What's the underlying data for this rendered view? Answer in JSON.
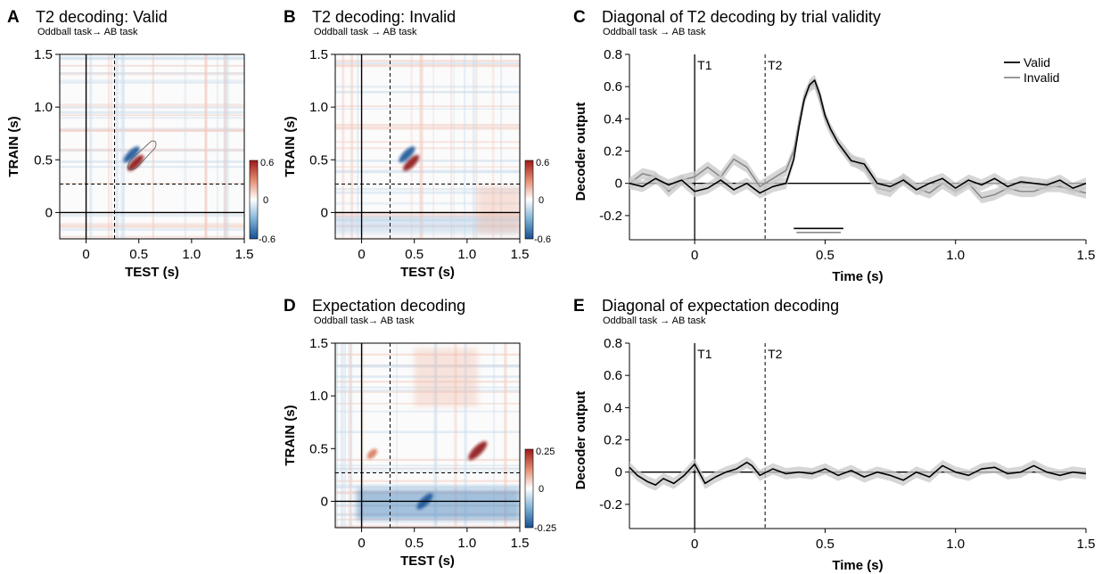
{
  "panels": {
    "A": {
      "letter": "A",
      "title": "T2 decoding: Valid",
      "subtitle": "Oddball task→ AB task"
    },
    "B": {
      "letter": "B",
      "title": "T2 decoding: Invalid",
      "subtitle": "Oddball task → AB task"
    },
    "C": {
      "letter": "C",
      "title": "Diagonal of T2 decoding by trial validity",
      "subtitle": "Oddball task → AB task"
    },
    "D": {
      "letter": "D",
      "title": "Expectation decoding",
      "subtitle": "Oddball  task→ AB task"
    },
    "E": {
      "letter": "E",
      "title": "Diagonal of expectation decoding",
      "subtitle": "Oddball task → AB task"
    }
  },
  "chart_data": [
    {
      "id": "A",
      "type": "heatmap",
      "title": "T2 decoding: Valid",
      "xlabel": "TEST (s)",
      "ylabel": "TRAIN (s)",
      "xlim": [
        -0.25,
        1.5
      ],
      "ylim": [
        -0.25,
        1.5
      ],
      "xticks": [
        "0",
        "0.5",
        "1.0",
        "1.5"
      ],
      "yticks": [
        "0",
        "0.5",
        "1.0",
        "1.5"
      ],
      "colorbar": {
        "min": -0.6,
        "max": 0.6,
        "labels": [
          "0.6",
          "0",
          "-0.6"
        ]
      },
      "markers": {
        "T1": 0,
        "T2": 0.27
      },
      "blobs": [
        {
          "x": 0.47,
          "y": 0.47,
          "value": 0.6,
          "note": "diagonal cluster, outlined"
        },
        {
          "x": 0.43,
          "y": 0.55,
          "value": -0.45
        }
      ]
    },
    {
      "id": "B",
      "type": "heatmap",
      "title": "T2 decoding: Invalid",
      "xlabel": "TEST (s)",
      "ylabel": "TRAIN (s)",
      "xlim": [
        -0.25,
        1.5
      ],
      "ylim": [
        -0.25,
        1.5
      ],
      "xticks": [
        "0",
        "0.5",
        "1.0",
        "1.5"
      ],
      "yticks": [
        "0",
        "0.5",
        "1.0",
        "1.5"
      ],
      "colorbar": {
        "min": -0.6,
        "max": 0.6,
        "labels": [
          "0.6",
          "0",
          "-0.6"
        ]
      },
      "markers": {
        "T1": 0,
        "T2": 0.27
      },
      "blobs": [
        {
          "x": 0.47,
          "y": 0.47,
          "value": 0.6
        },
        {
          "x": 0.43,
          "y": 0.55,
          "value": -0.45
        }
      ]
    },
    {
      "id": "C",
      "type": "line",
      "title": "Diagonal of T2 decoding by trial validity",
      "xlabel": "Time (s)",
      "ylabel": "Decoder output",
      "xlim": [
        -0.25,
        1.5
      ],
      "ylim": [
        -0.35,
        0.8
      ],
      "xticks": [
        {
          "v": 0,
          "t": "0"
        },
        {
          "v": 0.5,
          "t": "0.5"
        },
        {
          "v": 1,
          "t": "1.0"
        },
        {
          "v": 1.5,
          "t": "1.5"
        }
      ],
      "yticks": [
        {
          "v": 0.8,
          "t": "0.8"
        },
        {
          "v": 0.6,
          "t": "0.6"
        },
        {
          "v": 0.4,
          "t": "0.4"
        },
        {
          "v": 0.2,
          "t": "0.2"
        },
        {
          "v": 0,
          "t": "0"
        },
        {
          "v": -0.2,
          "t": "-0.2"
        }
      ],
      "markers": {
        "T1": 0,
        "T2": 0.27
      },
      "legend": {
        "position": "top-right",
        "entries": [
          "Valid",
          "Invalid"
        ]
      },
      "significance": [
        {
          "from": 0.38,
          "to": 0.57,
          "y": -0.28
        },
        {
          "from": 0.39,
          "to": 0.56,
          "y": -0.305
        }
      ],
      "series": [
        {
          "name": "Valid",
          "color": "#000000",
          "x": [
            -0.25,
            -0.2,
            -0.15,
            -0.1,
            -0.05,
            0,
            0.05,
            0.1,
            0.15,
            0.2,
            0.25,
            0.3,
            0.35,
            0.38,
            0.4,
            0.42,
            0.44,
            0.46,
            0.48,
            0.5,
            0.52,
            0.55,
            0.6,
            0.65,
            0.7,
            0.75,
            0.8,
            0.85,
            0.9,
            0.95,
            1.0,
            1.05,
            1.1,
            1.15,
            1.2,
            1.25,
            1.3,
            1.35,
            1.4,
            1.45,
            1.5
          ],
          "y": [
            0.0,
            -0.02,
            0.03,
            -0.01,
            0.02,
            -0.05,
            -0.03,
            0.02,
            -0.04,
            0.0,
            -0.06,
            -0.02,
            0.0,
            0.15,
            0.35,
            0.52,
            0.61,
            0.64,
            0.55,
            0.42,
            0.34,
            0.25,
            0.14,
            0.12,
            0.0,
            -0.02,
            0.02,
            -0.04,
            0.0,
            0.03,
            -0.03,
            0.02,
            -0.01,
            0.03,
            -0.02,
            0.01,
            0.0,
            -0.01,
            0.02,
            -0.03,
            0.0
          ]
        },
        {
          "name": "Invalid",
          "color": "#8a8a8a",
          "x": [
            -0.25,
            -0.2,
            -0.15,
            -0.1,
            -0.05,
            0,
            0.05,
            0.1,
            0.15,
            0.2,
            0.25,
            0.3,
            0.35,
            0.38,
            0.4,
            0.42,
            0.44,
            0.46,
            0.48,
            0.5,
            0.52,
            0.55,
            0.6,
            0.65,
            0.7,
            0.75,
            0.8,
            0.85,
            0.9,
            0.95,
            1.0,
            1.05,
            1.1,
            1.15,
            1.2,
            1.25,
            1.3,
            1.35,
            1.4,
            1.45,
            1.5
          ],
          "y": [
            0.0,
            0.06,
            0.04,
            -0.05,
            0.02,
            0.04,
            0.1,
            0.04,
            0.15,
            0.1,
            -0.02,
            0.03,
            0.08,
            0.2,
            0.38,
            0.54,
            0.6,
            0.62,
            0.52,
            0.4,
            0.33,
            0.25,
            0.15,
            0.1,
            -0.03,
            -0.05,
            0.03,
            -0.03,
            -0.06,
            0.0,
            -0.05,
            0.0,
            -0.09,
            -0.07,
            -0.03,
            -0.05,
            -0.05,
            -0.02,
            -0.02,
            -0.04,
            -0.06
          ]
        }
      ]
    },
    {
      "id": "D",
      "type": "heatmap",
      "title": "Expectation decoding",
      "xlabel": "TEST (s)",
      "ylabel": "TRAIN (s)",
      "xlim": [
        -0.25,
        1.5
      ],
      "ylim": [
        -0.25,
        1.5
      ],
      "xticks": [
        "0",
        "0.5",
        "1.0",
        "1.5"
      ],
      "yticks": [
        "0",
        "0.5",
        "1.0",
        "1.5"
      ],
      "colorbar": {
        "min": -0.25,
        "max": 0.25,
        "labels": [
          "0.25",
          "0",
          "-0.25"
        ]
      },
      "markers": {
        "T1": 0,
        "T2": 0.27
      },
      "blobs": [
        {
          "x": 1.1,
          "y": 0.48,
          "value": 0.2
        },
        {
          "x": 0.1,
          "y": 0.45,
          "value": 0.12
        },
        {
          "x": 0.6,
          "y": 0.0,
          "value": -0.2,
          "note": "blue band at train ~0"
        }
      ]
    },
    {
      "id": "E",
      "type": "line",
      "title": "Diagonal of expectation decoding",
      "xlabel": "Time (s)",
      "ylabel": "Decoder output",
      "xlim": [
        -0.25,
        1.5
      ],
      "ylim": [
        -0.35,
        0.8
      ],
      "xticks": [
        {
          "v": 0,
          "t": "0"
        },
        {
          "v": 0.5,
          "t": "0.5"
        },
        {
          "v": 1,
          "t": "1.0"
        },
        {
          "v": 1.5,
          "t": "1.5"
        }
      ],
      "yticks": [
        {
          "v": 0.8,
          "t": "0.8"
        },
        {
          "v": 0.6,
          "t": "0.6"
        },
        {
          "v": 0.4,
          "t": "0.4"
        },
        {
          "v": 0.2,
          "t": "0.2"
        },
        {
          "v": 0,
          "t": "0"
        },
        {
          "v": -0.2,
          "t": "-0.2"
        }
      ],
      "markers": {
        "T1": 0,
        "T2": 0.27
      },
      "series": [
        {
          "color": "#000000",
          "x": [
            -0.25,
            -0.22,
            -0.18,
            -0.15,
            -0.12,
            -0.08,
            -0.04,
            0,
            0.04,
            0.08,
            0.12,
            0.16,
            0.2,
            0.22,
            0.25,
            0.3,
            0.35,
            0.4,
            0.45,
            0.5,
            0.55,
            0.6,
            0.65,
            0.7,
            0.75,
            0.8,
            0.85,
            0.9,
            0.95,
            1.0,
            1.05,
            1.1,
            1.15,
            1.2,
            1.25,
            1.3,
            1.35,
            1.4,
            1.45,
            1.5
          ],
          "y": [
            0.03,
            -0.02,
            -0.06,
            -0.08,
            -0.04,
            -0.07,
            -0.02,
            0.05,
            -0.07,
            -0.03,
            0.0,
            0.02,
            0.06,
            0.04,
            -0.02,
            0.02,
            -0.01,
            0.0,
            -0.01,
            0.02,
            -0.02,
            0.01,
            -0.03,
            0.0,
            -0.02,
            -0.05,
            0.0,
            -0.03,
            0.04,
            0.0,
            -0.02,
            0.02,
            0.03,
            -0.01,
            0.0,
            0.04,
            0.0,
            -0.02,
            0.0,
            -0.01
          ]
        }
      ]
    }
  ]
}
